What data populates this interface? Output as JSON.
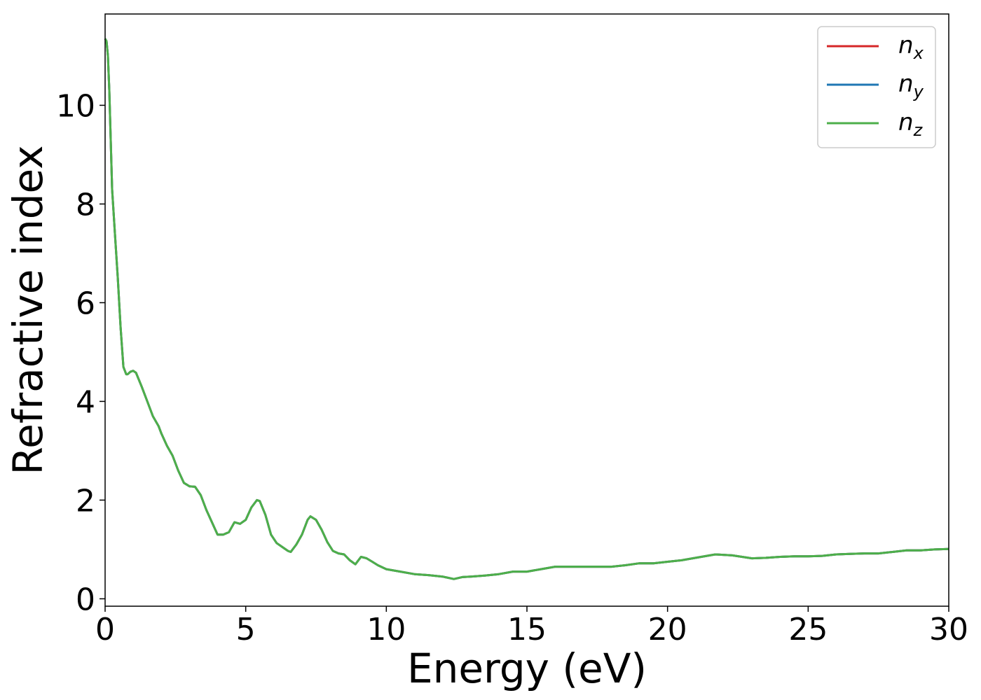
{
  "chart_data": {
    "type": "line",
    "xlabel": "Energy (eV)",
    "ylabel": "Refractive index",
    "xlim": [
      0,
      30
    ],
    "ylim": [
      -0.15,
      11.85
    ],
    "xticks": [
      "0",
      "5",
      "10",
      "15",
      "20",
      "25",
      "30"
    ],
    "yticks": [
      "0",
      "2",
      "4",
      "6",
      "8",
      "10"
    ],
    "grid": false,
    "legend_position": "top-right",
    "series": [
      {
        "name": "n_x",
        "label_main": "n",
        "label_sub": "x",
        "color": "#d62728",
        "x": [
          0,
          0.05,
          0.1,
          0.15,
          0.2,
          0.25,
          0.35,
          0.45,
          0.55,
          0.65,
          0.75,
          0.8,
          0.9,
          1.0,
          1.1,
          1.3,
          1.5,
          1.7,
          1.9,
          2.0,
          2.2,
          2.4,
          2.6,
          2.8,
          3.0,
          3.2,
          3.4,
          3.6,
          3.8,
          4.0,
          4.2,
          4.4,
          4.6,
          4.8,
          5.0,
          5.2,
          5.4,
          5.5,
          5.7,
          5.9,
          6.1,
          6.3,
          6.5,
          6.6,
          6.8,
          7.0,
          7.2,
          7.3,
          7.5,
          7.7,
          7.9,
          8.1,
          8.3,
          8.5,
          8.7,
          8.9,
          9.1,
          9.3,
          9.5,
          9.7,
          10.0,
          10.5,
          11.0,
          11.5,
          12.0,
          12.4,
          12.7,
          13.0,
          13.5,
          14.0,
          14.5,
          15.0,
          15.5,
          16.0,
          16.5,
          17.0,
          17.5,
          18.0,
          18.5,
          19.0,
          19.5,
          20.0,
          20.5,
          21.0,
          21.7,
          22.3,
          23.0,
          23.5,
          24.0,
          24.5,
          25.0,
          25.5,
          26.0,
          26.5,
          27.0,
          27.5,
          28.0,
          28.5,
          29.0,
          29.5,
          30.0
        ],
        "values": [
          11.35,
          11.3,
          11.0,
          10.3,
          9.3,
          8.3,
          7.4,
          6.5,
          5.5,
          4.7,
          4.55,
          4.55,
          4.6,
          4.62,
          4.58,
          4.3,
          4.0,
          3.7,
          3.5,
          3.35,
          3.1,
          2.9,
          2.6,
          2.35,
          2.28,
          2.27,
          2.1,
          1.8,
          1.55,
          1.3,
          1.3,
          1.35,
          1.55,
          1.52,
          1.6,
          1.85,
          2.0,
          1.98,
          1.7,
          1.3,
          1.13,
          1.05,
          0.97,
          0.95,
          1.1,
          1.3,
          1.6,
          1.67,
          1.6,
          1.4,
          1.15,
          0.97,
          0.92,
          0.9,
          0.78,
          0.7,
          0.85,
          0.82,
          0.75,
          0.68,
          0.6,
          0.55,
          0.5,
          0.48,
          0.45,
          0.4,
          0.44,
          0.45,
          0.47,
          0.5,
          0.55,
          0.55,
          0.6,
          0.65,
          0.65,
          0.65,
          0.65,
          0.65,
          0.68,
          0.72,
          0.72,
          0.75,
          0.78,
          0.83,
          0.9,
          0.88,
          0.82,
          0.83,
          0.85,
          0.86,
          0.86,
          0.87,
          0.9,
          0.91,
          0.92,
          0.92,
          0.95,
          0.98,
          0.98,
          1.0,
          1.01
        ]
      },
      {
        "name": "n_y",
        "label_main": "n",
        "label_sub": "y",
        "color": "#1f77b4",
        "x": [
          0,
          0.05,
          0.1,
          0.15,
          0.2,
          0.25,
          0.35,
          0.45,
          0.55,
          0.65,
          0.75,
          0.8,
          0.9,
          1.0,
          1.1,
          1.3,
          1.5,
          1.7,
          1.9,
          2.0,
          2.2,
          2.4,
          2.6,
          2.8,
          3.0,
          3.2,
          3.4,
          3.6,
          3.8,
          4.0,
          4.2,
          4.4,
          4.6,
          4.8,
          5.0,
          5.2,
          5.4,
          5.5,
          5.7,
          5.9,
          6.1,
          6.3,
          6.5,
          6.6,
          6.8,
          7.0,
          7.2,
          7.3,
          7.5,
          7.7,
          7.9,
          8.1,
          8.3,
          8.5,
          8.7,
          8.9,
          9.1,
          9.3,
          9.5,
          9.7,
          10.0,
          10.5,
          11.0,
          11.5,
          12.0,
          12.4,
          12.7,
          13.0,
          13.5,
          14.0,
          14.5,
          15.0,
          15.5,
          16.0,
          16.5,
          17.0,
          17.5,
          18.0,
          18.5,
          19.0,
          19.5,
          20.0,
          20.5,
          21.0,
          21.7,
          22.3,
          23.0,
          23.5,
          24.0,
          24.5,
          25.0,
          25.5,
          26.0,
          26.5,
          27.0,
          27.5,
          28.0,
          28.5,
          29.0,
          29.5,
          30.0
        ],
        "values": [
          11.35,
          11.3,
          11.0,
          10.3,
          9.3,
          8.3,
          7.4,
          6.5,
          5.5,
          4.7,
          4.55,
          4.55,
          4.6,
          4.62,
          4.58,
          4.3,
          4.0,
          3.7,
          3.5,
          3.35,
          3.1,
          2.9,
          2.6,
          2.35,
          2.28,
          2.27,
          2.1,
          1.8,
          1.55,
          1.3,
          1.3,
          1.35,
          1.55,
          1.52,
          1.6,
          1.85,
          2.0,
          1.98,
          1.7,
          1.3,
          1.13,
          1.05,
          0.97,
          0.95,
          1.1,
          1.3,
          1.6,
          1.67,
          1.6,
          1.4,
          1.15,
          0.97,
          0.92,
          0.9,
          0.78,
          0.7,
          0.85,
          0.82,
          0.75,
          0.68,
          0.6,
          0.55,
          0.5,
          0.48,
          0.45,
          0.4,
          0.44,
          0.45,
          0.47,
          0.5,
          0.55,
          0.55,
          0.6,
          0.65,
          0.65,
          0.65,
          0.65,
          0.65,
          0.68,
          0.72,
          0.72,
          0.75,
          0.78,
          0.83,
          0.9,
          0.88,
          0.82,
          0.83,
          0.85,
          0.86,
          0.86,
          0.87,
          0.9,
          0.91,
          0.92,
          0.92,
          0.95,
          0.98,
          0.98,
          1.0,
          1.01
        ]
      },
      {
        "name": "n_z",
        "label_main": "n",
        "label_sub": "z",
        "color": "#4daf4a",
        "x": [
          0,
          0.05,
          0.1,
          0.15,
          0.2,
          0.25,
          0.35,
          0.45,
          0.55,
          0.65,
          0.75,
          0.8,
          0.9,
          1.0,
          1.1,
          1.3,
          1.5,
          1.7,
          1.9,
          2.0,
          2.2,
          2.4,
          2.6,
          2.8,
          3.0,
          3.2,
          3.4,
          3.6,
          3.8,
          4.0,
          4.2,
          4.4,
          4.6,
          4.8,
          5.0,
          5.2,
          5.4,
          5.5,
          5.7,
          5.9,
          6.1,
          6.3,
          6.5,
          6.6,
          6.8,
          7.0,
          7.2,
          7.3,
          7.5,
          7.7,
          7.9,
          8.1,
          8.3,
          8.5,
          8.7,
          8.9,
          9.1,
          9.3,
          9.5,
          9.7,
          10.0,
          10.5,
          11.0,
          11.5,
          12.0,
          12.4,
          12.7,
          13.0,
          13.5,
          14.0,
          14.5,
          15.0,
          15.5,
          16.0,
          16.5,
          17.0,
          17.5,
          18.0,
          18.5,
          19.0,
          19.5,
          20.0,
          20.5,
          21.0,
          21.7,
          22.3,
          23.0,
          23.5,
          24.0,
          24.5,
          25.0,
          25.5,
          26.0,
          26.5,
          27.0,
          27.5,
          28.0,
          28.5,
          29.0,
          29.5,
          30.0
        ],
        "values": [
          11.35,
          11.3,
          11.0,
          10.3,
          9.3,
          8.3,
          7.4,
          6.5,
          5.5,
          4.7,
          4.55,
          4.55,
          4.6,
          4.62,
          4.58,
          4.3,
          4.0,
          3.7,
          3.5,
          3.35,
          3.1,
          2.9,
          2.6,
          2.35,
          2.28,
          2.27,
          2.1,
          1.8,
          1.55,
          1.3,
          1.3,
          1.35,
          1.55,
          1.52,
          1.6,
          1.85,
          2.0,
          1.98,
          1.7,
          1.3,
          1.13,
          1.05,
          0.97,
          0.95,
          1.1,
          1.3,
          1.6,
          1.67,
          1.6,
          1.4,
          1.15,
          0.97,
          0.92,
          0.9,
          0.78,
          0.7,
          0.85,
          0.82,
          0.75,
          0.68,
          0.6,
          0.55,
          0.5,
          0.48,
          0.45,
          0.4,
          0.44,
          0.45,
          0.47,
          0.5,
          0.55,
          0.55,
          0.6,
          0.65,
          0.65,
          0.65,
          0.65,
          0.65,
          0.68,
          0.72,
          0.72,
          0.75,
          0.78,
          0.83,
          0.9,
          0.88,
          0.82,
          0.83,
          0.85,
          0.86,
          0.86,
          0.87,
          0.9,
          0.91,
          0.92,
          0.92,
          0.95,
          0.98,
          0.98,
          1.0,
          1.01
        ]
      }
    ]
  }
}
